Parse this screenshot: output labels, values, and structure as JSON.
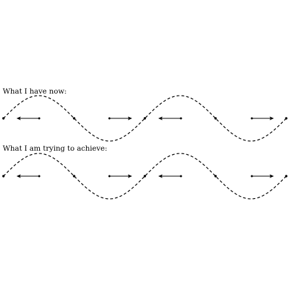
{
  "panels": [
    {
      "caption": "What I have now:",
      "arrows": [
        "left",
        "right",
        "left",
        "right"
      ]
    },
    {
      "caption": "What I am trying to achieve:",
      "arrows": [
        "left",
        "right",
        "left",
        "right"
      ]
    }
  ],
  "colors": {
    "stroke": "#000000",
    "background": "#ffffff"
  }
}
